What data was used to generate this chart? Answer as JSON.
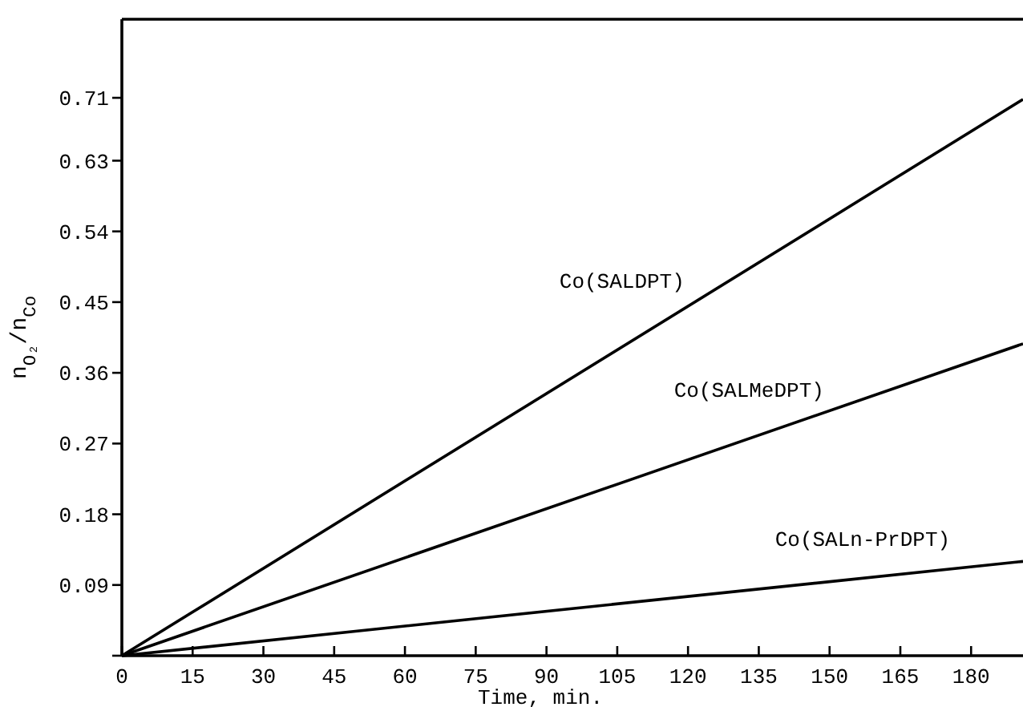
{
  "chart_data": {
    "type": "line",
    "xlabel": "Time, min.",
    "ylabel": "n$_{O₂}$/n$_{Co}$",
    "x": [
      0,
      191
    ],
    "series": [
      {
        "name": "Co(SALDPT)",
        "color": "#000000",
        "values": [
          0,
          0.708
        ]
      },
      {
        "name": "Co(SALMeDPT)",
        "color": "#000000",
        "values": [
          0,
          0.397
        ]
      },
      {
        "name": "Co(SALn-PrDPT)",
        "color": "#000000",
        "values": [
          0,
          0.12
        ]
      }
    ],
    "xlim": [
      0,
      191
    ],
    "ylim": [
      0,
      0.81
    ],
    "xticks": [
      0,
      15,
      30,
      45,
      60,
      75,
      90,
      105,
      120,
      135,
      150,
      165,
      180
    ],
    "yticks": [
      {
        "value": 0,
        "label": null
      },
      0.09,
      0.18,
      0.27,
      0.36,
      0.45,
      0.54,
      0.63,
      0.71
    ],
    "grid": false,
    "marker": "none",
    "line_style": "solid"
  }
}
